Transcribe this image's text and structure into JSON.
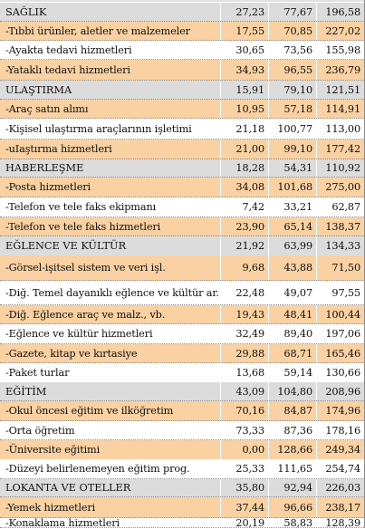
{
  "rows": [
    {
      "name": "SAĞLIK",
      "v1": "27,23",
      "v2": "77,67",
      "v3": "196,58",
      "kind": "cat"
    },
    {
      "name": "-Tıbbi ürünler, aletler ve malzemeler",
      "v1": "17,55",
      "v2": "70,85",
      "v3": "227,02",
      "kind": "sub"
    },
    {
      "name": "-Ayakta tedavi hizmetleri",
      "v1": "30,65",
      "v2": "73,56",
      "v3": "155,98",
      "kind": "plain"
    },
    {
      "name": "-Yataklı tedavi hizmetleri",
      "v1": "34,93",
      "v2": "96,55",
      "v3": "236,79",
      "kind": "sub"
    },
    {
      "name": "ULAŞTIRMA",
      "v1": "15,91",
      "v2": "79,10",
      "v3": "121,51",
      "kind": "cat"
    },
    {
      "name": "-Araç satın alımı",
      "v1": "10,95",
      "v2": "57,18",
      "v3": "114,91",
      "kind": "sub"
    },
    {
      "name": "-Kişisel ulaştırma araçlarının işletimi",
      "v1": "21,18",
      "v2": "100,77",
      "v3": "113,00",
      "kind": "plain"
    },
    {
      "name": "-uIaştırma hizmetleri",
      "v1": "21,00",
      "v2": "99,10",
      "v3": "177,42",
      "kind": "sub"
    },
    {
      "name": "HABERLEŞME",
      "v1": "18,28",
      "v2": "54,31",
      "v3": "110,92",
      "kind": "cat"
    },
    {
      "name": "-Posta hizmetleri",
      "v1": "34,08",
      "v2": "101,68",
      "v3": "275,00",
      "kind": "sub"
    },
    {
      "name": "-Telefon ve tele faks ekipmanı",
      "v1": "7,42",
      "v2": "33,21",
      "v3": "62,87",
      "kind": "plain"
    },
    {
      "name": "-Telefon ve tele faks hizmetleri",
      "v1": "23,90",
      "v2": "65,14",
      "v3": "138,37",
      "kind": "sub"
    },
    {
      "name": "EĞLENCE VE KÜLTÜR",
      "v1": "21,92",
      "v2": "63,99",
      "v3": "134,33",
      "kind": "cat"
    },
    {
      "name": "-Görsel-işitsel sistem ve veri işl.",
      "v1": "9,68",
      "v2": "43,88",
      "v3": "71,50",
      "kind": "sub"
    },
    {
      "name": "-Diğ. Temel dayanıklı eğlence ve kültür ar.",
      "v1": "22,48",
      "v2": "49,07",
      "v3": "97,55",
      "kind": "plain"
    },
    {
      "name": "-Diğ. Eğlence araç ve malz., vb.",
      "v1": "19,43",
      "v2": "48,41",
      "v3": "100,44",
      "kind": "sub"
    },
    {
      "name": "-Eğlence ve kültür hizmetleri",
      "v1": "32,49",
      "v2": "89,40",
      "v3": "197,06",
      "kind": "plain"
    },
    {
      "name": "-Gazete, kitap ve kırtasiye",
      "v1": "29,88",
      "v2": "68,71",
      "v3": "165,46",
      "kind": "sub"
    },
    {
      "name": "-Paket turlar",
      "v1": "13,68",
      "v2": "59,14",
      "v3": "130,66",
      "kind": "plain"
    },
    {
      "name": "EĞİTİM",
      "v1": "43,09",
      "v2": "104,80",
      "v3": "208,96",
      "kind": "cat"
    },
    {
      "name": "-Okul öncesi eğitim ve ilköğretim",
      "v1": "70,16",
      "v2": "84,87",
      "v3": "174,96",
      "kind": "sub"
    },
    {
      "name": "-Orta öğretim",
      "v1": "73,33",
      "v2": "87,36",
      "v3": "178,16",
      "kind": "plain"
    },
    {
      "name": "-Üniversite eğitimi",
      "v1": "0,00",
      "v2": "128,66",
      "v3": "249,34",
      "kind": "sub"
    },
    {
      "name": "-Düzeyi belirlenemeyen eğitim prog.",
      "v1": "25,33",
      "v2": "111,65",
      "v3": "254,74",
      "kind": "plain"
    },
    {
      "name": "LOKANTA VE OTELLER",
      "v1": "35,80",
      "v2": "92,94",
      "v3": "226,03",
      "kind": "cat"
    },
    {
      "name": "-Yemek hizmetleri",
      "v1": "37,44",
      "v2": "96,66",
      "v3": "238,17",
      "kind": "sub"
    },
    {
      "name": "-Konaklama hizmetleri",
      "v1": "20,19",
      "v2": "58,83",
      "v3": "128,39",
      "kind": "plain"
    }
  ]
}
